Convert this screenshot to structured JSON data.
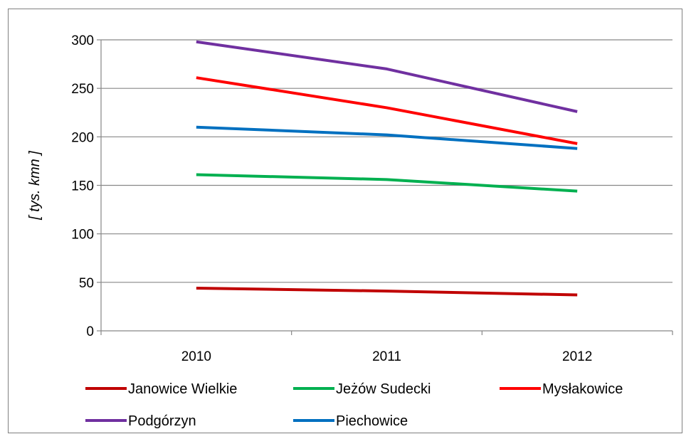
{
  "chart_data": {
    "type": "line",
    "title": "",
    "xlabel": "",
    "ylabel": "[ tys. kmn ]",
    "ylim": [
      0,
      300
    ],
    "yticks": [
      0,
      50,
      100,
      150,
      200,
      250,
      300
    ],
    "categories": [
      "2010",
      "2011",
      "2012"
    ],
    "grid": "horizontal",
    "legend_position": "bottom",
    "series": [
      {
        "name": "Janowice Wielkie",
        "color": "#C00000",
        "values": [
          44,
          41,
          37
        ]
      },
      {
        "name": "Jeżów Sudecki",
        "color": "#00B050",
        "values": [
          161,
          156,
          144
        ]
      },
      {
        "name": "Mysłakowice",
        "color": "#FF0000",
        "values": [
          261,
          230,
          193
        ]
      },
      {
        "name": "Podgórzyn",
        "color": "#7030A0",
        "values": [
          298,
          270,
          226
        ]
      },
      {
        "name": "Piechowice",
        "color": "#0070C0",
        "values": [
          210,
          202,
          188
        ]
      }
    ]
  }
}
